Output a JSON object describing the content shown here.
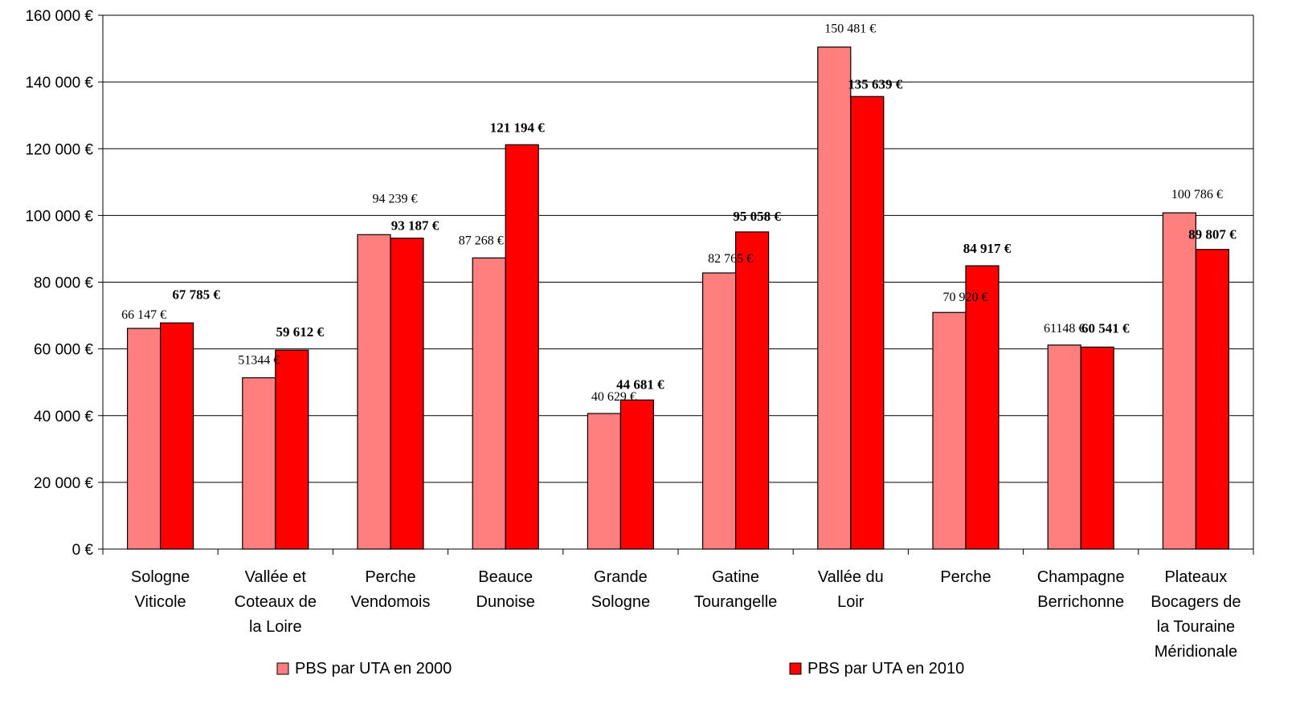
{
  "chart_data": {
    "type": "bar",
    "categories": [
      [
        "Sologne",
        "Viticole"
      ],
      [
        "Vallée et",
        "Coteaux de",
        "la Loire"
      ],
      [
        "Perche",
        "Vendomois"
      ],
      [
        "Beauce",
        "Dunoise"
      ],
      [
        "Grande",
        "Sologne"
      ],
      [
        "Gatine",
        "Tourangelle"
      ],
      [
        "Vallée du",
        "Loir"
      ],
      [
        "Perche"
      ],
      [
        "Champagne",
        "Berrichonne"
      ],
      [
        "Plateaux",
        "Bocagers de",
        "la Touraine",
        "Méridionale"
      ]
    ],
    "series": [
      {
        "name": "PBS par UTA en 2000",
        "color": "#ff7f7f",
        "values": [
          66147,
          51344,
          94239,
          87268,
          40629,
          82765,
          150481,
          70920,
          61148,
          100786
        ],
        "labels": [
          "66 147 €",
          "51344 €",
          "94 239 €",
          "87 268 €",
          "40 629 €",
          "82 765 €",
          "150 481 €",
          "70 920 €",
          "61148 €",
          "100 786 €"
        ]
      },
      {
        "name": "PBS par UTA en 2010",
        "color": "#ff0000",
        "values": [
          67785,
          59612,
          93187,
          121194,
          44681,
          95058,
          135639,
          84917,
          60541,
          89807
        ],
        "labels": [
          "67 785 €",
          "59 612 €",
          "93 187 €",
          "121 194 €",
          "44 681 €",
          "95 058 €",
          "135 639 €",
          "84 917 €",
          "60 541 €",
          "89 807 €"
        ]
      }
    ],
    "yticks": [
      "0 €",
      "20 000 €",
      "40 000 €",
      "60 000 €",
      "80 000 €",
      "100 000 €",
      "120 000 €",
      "140 000 €",
      "160 000 €"
    ],
    "ylim": [
      0,
      160000
    ],
    "grid": true,
    "legend_position": "bottom"
  }
}
